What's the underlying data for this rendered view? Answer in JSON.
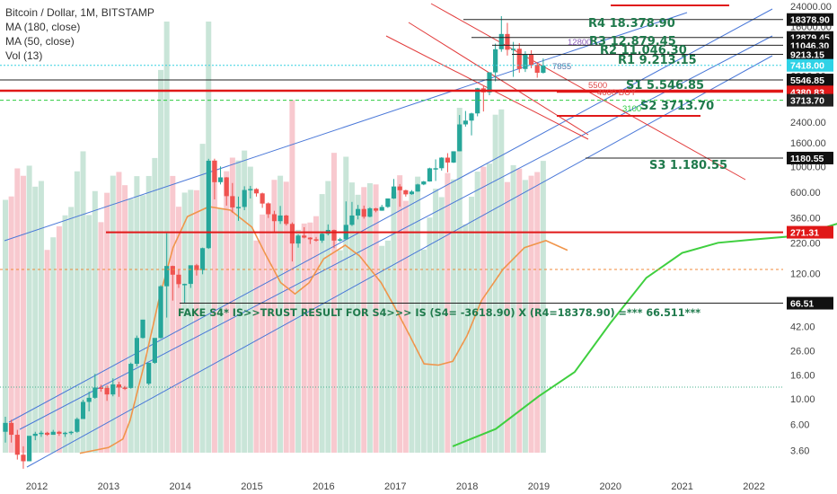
{
  "legend": {
    "title": "Bitcoin / Dollar, 1M, BITSTAMP",
    "ma180": "MA (180, close)",
    "ma50": "MA (50, close)",
    "vol": "Vol (13)"
  },
  "colors": {
    "bull": "#26a69a",
    "bear": "#ef5350",
    "bullVol": "#b7dccb",
    "bearVol": "#f5b7bf",
    "ma50": "#3fcf3f",
    "ma180": "#f0954b",
    "channel": "#4a78d8",
    "downChannel": "#e23b3b",
    "cyan": "#35d0e0",
    "red": "#e01818",
    "orange": "#f08a3a",
    "green": "#2ecc40",
    "teal": "#44b08c"
  },
  "chart_data": {
    "type": "candlestick",
    "symbol": "Bitcoin / Dollar",
    "interval": "1M",
    "exchange": "BITSTAMP",
    "scale": "log",
    "ylim": [
      2.5,
      33000
    ],
    "x_ticks": [
      "2012",
      "2013",
      "2014",
      "2015",
      "2016",
      "2017",
      "2018",
      "2019",
      "2020",
      "2021",
      "2022"
    ],
    "y_ticks": [
      "24000.00",
      "16000.00",
      "10000.00",
      "6000.00",
      "3600.00",
      "2400.00",
      "1600.00",
      "1000.00",
      "600.00",
      "360.00",
      "220.00",
      "120.00",
      "70.00",
      "42.00",
      "26.00",
      "16.00",
      "10.00",
      "6.00",
      "3.60"
    ],
    "candles": [
      [
        5.2,
        7.0,
        4.2,
        6.2
      ],
      [
        6.2,
        6.6,
        4.2,
        4.9
      ],
      [
        4.9,
        5.4,
        3.0,
        3.3
      ],
      [
        3.3,
        3.9,
        2.5,
        2.9
      ],
      [
        2.9,
        4.5,
        2.9,
        4.8
      ],
      [
        4.8,
        5.2,
        4.4,
        5.0
      ],
      [
        5.0,
        5.3,
        4.7,
        5.1
      ],
      [
        5.1,
        5.2,
        4.8,
        4.9
      ],
      [
        4.9,
        5.4,
        4.9,
        5.2
      ],
      [
        5.2,
        5.3,
        4.8,
        5.0
      ],
      [
        5.0,
        5.2,
        4.7,
        5.1
      ],
      [
        5.1,
        5.3,
        4.9,
        5.2
      ],
      [
        5.2,
        6.9,
        5.1,
        6.7
      ],
      [
        6.7,
        9.8,
        6.7,
        9.4
      ],
      [
        9.4,
        11.5,
        7.8,
        10.2
      ],
      [
        10.2,
        16.4,
        10.0,
        12.5
      ],
      [
        12.5,
        13.2,
        11.5,
        12.4
      ],
      [
        12.4,
        13.0,
        9.6,
        10.9
      ],
      [
        10.9,
        15.0,
        10.5,
        13.3
      ],
      [
        13.3,
        14.0,
        10.4,
        12.5
      ],
      [
        12.5,
        12.9,
        11.9,
        12.4
      ],
      [
        12.4,
        20.5,
        12.2,
        20.0
      ],
      [
        20.0,
        35.0,
        19.0,
        33.4
      ],
      [
        33.4,
        48.0,
        33.0,
        48.0
      ],
      [
        13.5,
        20.4,
        13.1,
        20.4
      ],
      [
        20.4,
        33.0,
        20.0,
        33.4
      ],
      [
        33.4,
        95.0,
        33.0,
        93.0
      ],
      [
        93.0,
        266.0,
        50.0,
        139.0
      ],
      [
        139.0,
        140.0,
        70.0,
        117.0
      ],
      [
        117.0,
        130.0,
        90.0,
        97.0
      ],
      [
        97.0,
        98.0,
        66.0,
        97.5
      ],
      [
        97.5,
        125.0,
        90.0,
        141.0
      ],
      [
        141.0,
        145.0,
        115.0,
        128.0
      ],
      [
        128.0,
        200.0,
        118.0,
        198.0
      ],
      [
        198.0,
        1163.0,
        195.0,
        1120.0
      ],
      [
        1120.0,
        1165.0,
        520.0,
        732.0
      ],
      [
        732.0,
        1000.0,
        700.0,
        805.0
      ],
      [
        805.0,
        810.0,
        460.0,
        555.0
      ],
      [
        555.0,
        720.0,
        400.0,
        444.0
      ],
      [
        444.0,
        550.0,
        340.0,
        448.0
      ],
      [
        448.0,
        675.0,
        420.0,
        627.0
      ],
      [
        627.0,
        680.0,
        530.0,
        639.0
      ],
      [
        639.0,
        650.0,
        550.0,
        586.0
      ],
      [
        586.0,
        595.0,
        440.0,
        479.0
      ],
      [
        479.0,
        490.0,
        360.0,
        388.0
      ],
      [
        388.0,
        415.0,
        275.0,
        338.0
      ],
      [
        338.0,
        457.0,
        320.0,
        378.0
      ],
      [
        378.0,
        383.0,
        310.0,
        320.0
      ],
      [
        320.0,
        330.0,
        152.0,
        217.0
      ],
      [
        217.0,
        260.0,
        200.0,
        254.0
      ],
      [
        254.0,
        300.0,
        240.0,
        244.0
      ],
      [
        244.0,
        246.0,
        215.0,
        236.0
      ],
      [
        236.0,
        247.0,
        225.0,
        230.0
      ],
      [
        230.0,
        268.0,
        220.0,
        263.0
      ],
      [
        263.0,
        317.0,
        255.0,
        284.0
      ],
      [
        284.0,
        286.0,
        198.0,
        230.0
      ],
      [
        230.0,
        243.0,
        225.0,
        236.0
      ],
      [
        236.0,
        500.0,
        235.0,
        314.0
      ],
      [
        314.0,
        495.0,
        307.0,
        378.0
      ],
      [
        378.0,
        466.0,
        350.0,
        430.0
      ],
      [
        430.0,
        460.0,
        355.0,
        369.0
      ],
      [
        369.0,
        445.0,
        365.0,
        436.0
      ],
      [
        436.0,
        440.0,
        403.0,
        416.0
      ],
      [
        416.0,
        467.0,
        415.0,
        448.0
      ],
      [
        448.0,
        470.0,
        440.0,
        530.0
      ],
      [
        530.0,
        780.0,
        525.0,
        672.0
      ],
      [
        672.0,
        705.0,
        450.0,
        624.0
      ],
      [
        624.0,
        630.0,
        550.0,
        575.0
      ],
      [
        575.0,
        625.0,
        570.0,
        608.0
      ],
      [
        608.0,
        710.0,
        605.0,
        700.0
      ],
      [
        700.0,
        750.0,
        690.0,
        742.0
      ],
      [
        742.0,
        975.0,
        740.0,
        963.0
      ],
      [
        963.0,
        1150.0,
        750.0,
        965.0
      ],
      [
        965.0,
        1200.0,
        920.0,
        1190.0
      ],
      [
        1190.0,
        1300.0,
        890.0,
        1080.0
      ],
      [
        1080.0,
        1350.0,
        1070.0,
        1350.0
      ],
      [
        1350.0,
        2770.0,
        1350.0,
        2300.0
      ],
      [
        2300.0,
        3000.0,
        2200.0,
        2480.0
      ],
      [
        2480.0,
        2900.0,
        1850.0,
        2860.0
      ],
      [
        2860.0,
        4740.0,
        2700.0,
        4700.0
      ],
      [
        4700.0,
        4980.0,
        2970.0,
        4340.0
      ],
      [
        4340.0,
        6470.0,
        4100.0,
        6450.0
      ],
      [
        6450.0,
        11400.0,
        5400.0,
        10200.0
      ],
      [
        10200.0,
        19666.0,
        9700.0,
        13800.0
      ],
      [
        13800.0,
        17200.0,
        9000.0,
        10100.0
      ],
      [
        10100.0,
        11800.0,
        5900.0,
        10300.0
      ],
      [
        10300.0,
        11500.0,
        6400.0,
        6900.0
      ],
      [
        6900.0,
        9800.0,
        6500.0,
        9200.0
      ],
      [
        9200.0,
        10000.0,
        7000.0,
        7500.0
      ],
      [
        7500.0,
        7800.0,
        5800.0,
        6400.0
      ],
      [
        6400.0,
        8500.0,
        6300.0,
        7400.0
      ]
    ],
    "volume_series_note": "",
    "ma50_points": [
      [
        5.8,
        3.9
      ],
      [
        6.4,
        5.5
      ],
      [
        7.0,
        10.5
      ],
      [
        7.5,
        17.0
      ],
      [
        8.0,
        45.0
      ],
      [
        8.5,
        110.0
      ],
      [
        9.0,
        180.0
      ],
      [
        9.5,
        220.0
      ],
      [
        10.0,
        235.0
      ],
      [
        10.5,
        250.0
      ],
      [
        11.0,
        300.0
      ],
      [
        11.5,
        370.0
      ],
      [
        12.0,
        550.0
      ],
      [
        12.5,
        1300.0
      ],
      [
        12.75,
        2100.0
      ],
      [
        13.0,
        2900.0
      ],
      [
        13.4,
        3700.0
      ]
    ],
    "ma180_points": [
      [
        0.6,
        3.4
      ],
      [
        1.0,
        3.8
      ],
      [
        1.2,
        4.5
      ],
      [
        1.3,
        6.5
      ],
      [
        1.5,
        20.0
      ],
      [
        1.7,
        70.0
      ],
      [
        1.9,
        200.0
      ],
      [
        2.1,
        370.0
      ],
      [
        2.4,
        450.0
      ],
      [
        2.7,
        420.0
      ],
      [
        3.0,
        300.0
      ],
      [
        3.2,
        170.0
      ],
      [
        3.4,
        100.0
      ],
      [
        3.6,
        80.0
      ],
      [
        3.8,
        100.0
      ],
      [
        4.0,
        160.0
      ],
      [
        4.3,
        210.0
      ],
      [
        4.5,
        170.0
      ],
      [
        4.8,
        100.0
      ],
      [
        5.0,
        60.0
      ],
      [
        5.2,
        35.0
      ],
      [
        5.4,
        20.0
      ],
      [
        5.6,
        19.5
      ],
      [
        5.8,
        21.0
      ],
      [
        6.0,
        35.0
      ],
      [
        6.2,
        70.0
      ],
      [
        6.5,
        130.0
      ],
      [
        6.8,
        200.0
      ],
      [
        7.1,
        230.0
      ],
      [
        7.4,
        190.0
      ]
    ],
    "levels": [
      {
        "label": "18378.90",
        "price": 18378.9,
        "color": "#222222",
        "style": "solid"
      },
      {
        "label": "12879.45",
        "price": 12879.45,
        "color": "#222222",
        "style": "solid"
      },
      {
        "label": "11046.30",
        "price": 11046.3,
        "color": "#222222",
        "style": "solid"
      },
      {
        "label": "9213.15",
        "price": 9213.15,
        "color": "#222222",
        "style": "solid"
      },
      {
        "label": "7418.00",
        "price": 7418.0,
        "color": "#35d0e0",
        "style": "dotted"
      },
      {
        "label": "5546.85",
        "price": 5546.85,
        "color": "#222222",
        "style": "solid"
      },
      {
        "label": "4380.83",
        "price": 4380.83,
        "color": "#e01818",
        "style": "solid"
      },
      {
        "label": "3713.70",
        "price": 3713.7,
        "color": "#2ecc40",
        "style": "dashed"
      },
      {
        "label": "1180.55",
        "price": 1180.55,
        "color": "#222222",
        "style": "solid"
      },
      {
        "label": "271.31",
        "price": 271.31,
        "color": "#e01818",
        "style": "solid"
      },
      {
        "label": "66.51",
        "price": 66.51,
        "color": "#222222",
        "style": "solid"
      }
    ],
    "annotations": {
      "r4": "R4  18.378.90",
      "r3": "R3  12.879.45",
      "r2": "R2  11.046.30",
      "r1": "R1  9.213.15",
      "s1": "S1   5.546.85",
      "s2": "S2 3713.70",
      "s3": "S3  1.180.55",
      "p12800": "12800",
      "p7855": "7855",
      "p5500": "5500",
      "p4600": "4600 BUY",
      "p3100": "3100",
      "fake": "FAKE S4*    IS>>TRUST RESULT FOR S4>>>    IS (S4= -3618.90) X    (R4=18378.90)   =*** 66.511***"
    }
  }
}
